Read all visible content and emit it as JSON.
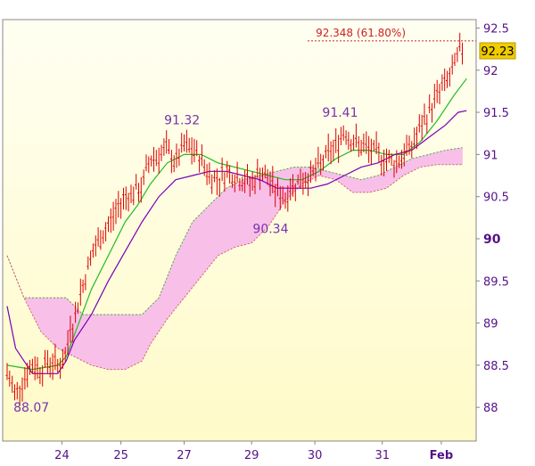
{
  "chart_data": {
    "type": "candlestick",
    "ylim": [
      87.6,
      92.6
    ],
    "y_ticks": [
      88,
      88.5,
      89,
      89.5,
      90,
      90.5,
      91,
      91.5,
      92,
      92.5
    ],
    "y_tick_labels": [
      "88",
      "88.5",
      "89",
      "89.5",
      "90",
      "90.5",
      "91",
      "91.5",
      "92",
      "92.5"
    ],
    "y_tick_emphasis": "90",
    "x_tick_labels": [
      {
        "label": "24",
        "x": 13
      },
      {
        "label": "25",
        "x": 27
      },
      {
        "label": "27",
        "x": 42
      },
      {
        "label": "29",
        "x": 58
      },
      {
        "label": "30",
        "x": 73
      },
      {
        "label": "31",
        "x": 89
      },
      {
        "label": "Feb",
        "x": 103
      }
    ],
    "x_range": [
      0,
      110
    ],
    "last_price": "92.23",
    "last_price_value": 92.23,
    "fib_level": {
      "value": 92.348,
      "label": "92.348 (61.80%)"
    },
    "annotations": [
      {
        "text": "88.07",
        "x": 1.5,
        "y": 87.95
      },
      {
        "text": "91.32",
        "x": 41.5,
        "y": 91.36
      },
      {
        "text": "90.34",
        "x": 62.5,
        "y": 90.07
      },
      {
        "text": "91.41",
        "x": 79,
        "y": 91.45
      }
    ],
    "candles": {
      "points": [
        [
          0,
          88.4
        ],
        [
          2,
          88.15
        ],
        [
          4,
          88.35
        ],
        [
          6,
          88.5
        ],
        [
          8,
          88.45
        ],
        [
          10,
          88.55
        ],
        [
          12,
          88.5
        ],
        [
          14,
          88.6
        ],
        [
          15,
          89.0
        ],
        [
          16,
          89.0
        ],
        [
          17,
          89.3
        ],
        [
          18,
          89.45
        ],
        [
          20,
          89.8
        ],
        [
          22,
          90.0
        ],
        [
          24,
          90.15
        ],
        [
          26,
          90.35
        ],
        [
          28,
          90.5
        ],
        [
          30,
          90.55
        ],
        [
          32,
          90.6
        ],
        [
          33,
          90.8
        ],
        [
          34,
          90.95
        ],
        [
          36,
          91.0
        ],
        [
          38,
          91.05
        ],
        [
          40,
          90.9
        ],
        [
          42,
          91.1
        ],
        [
          44,
          91.05
        ],
        [
          46,
          90.95
        ],
        [
          48,
          90.75
        ],
        [
          50,
          90.7
        ],
        [
          52,
          90.8
        ],
        [
          54,
          90.75
        ],
        [
          56,
          90.7
        ],
        [
          58,
          90.65
        ],
        [
          60,
          90.8
        ],
        [
          62,
          90.7
        ],
        [
          64,
          90.55
        ],
        [
          66,
          90.5
        ],
        [
          68,
          90.65
        ],
        [
          70,
          90.7
        ],
        [
          72,
          90.75
        ],
        [
          74,
          90.85
        ],
        [
          76,
          91.0
        ],
        [
          78,
          91.1
        ],
        [
          80,
          91.3
        ],
        [
          82,
          91.15
        ],
        [
          84,
          91.1
        ],
        [
          86,
          91.05
        ],
        [
          88,
          91.0
        ],
        [
          90,
          90.95
        ],
        [
          92,
          90.9
        ],
        [
          94,
          91.0
        ],
        [
          96,
          91.1
        ],
        [
          98,
          91.3
        ],
        [
          100,
          91.5
        ],
        [
          102,
          91.7
        ],
        [
          104,
          91.85
        ],
        [
          106,
          92.0
        ],
        [
          107,
          92.2
        ],
        [
          108,
          92.23
        ]
      ],
      "color": "#dd0000"
    },
    "series": [
      {
        "style": "line",
        "color": "#22bb22",
        "points": [
          [
            0,
            88.5
          ],
          [
            6,
            88.45
          ],
          [
            12,
            88.5
          ],
          [
            14,
            88.6
          ],
          [
            17,
            89.0
          ],
          [
            20,
            89.4
          ],
          [
            24,
            89.8
          ],
          [
            28,
            90.2
          ],
          [
            31,
            90.4
          ],
          [
            34,
            90.65
          ],
          [
            38,
            90.9
          ],
          [
            42,
            91.0
          ],
          [
            46,
            91.0
          ],
          [
            50,
            90.9
          ],
          [
            54,
            90.85
          ],
          [
            58,
            90.8
          ],
          [
            62,
            90.75
          ],
          [
            66,
            90.7
          ],
          [
            70,
            90.7
          ],
          [
            74,
            90.8
          ],
          [
            78,
            90.95
          ],
          [
            82,
            91.05
          ],
          [
            86,
            91.05
          ],
          [
            90,
            91.0
          ],
          [
            94,
            91.0
          ],
          [
            98,
            91.15
          ],
          [
            102,
            91.4
          ],
          [
            106,
            91.7
          ],
          [
            109,
            91.9
          ]
        ]
      },
      {
        "style": "line",
        "color": "#7700bb",
        "points": [
          [
            0,
            89.2
          ],
          [
            2,
            88.7
          ],
          [
            6,
            88.4
          ],
          [
            12,
            88.4
          ],
          [
            14,
            88.55
          ],
          [
            16,
            88.8
          ],
          [
            20,
            89.1
          ],
          [
            24,
            89.5
          ],
          [
            28,
            89.85
          ],
          [
            32,
            90.2
          ],
          [
            36,
            90.5
          ],
          [
            40,
            90.7
          ],
          [
            44,
            90.75
          ],
          [
            48,
            90.8
          ],
          [
            52,
            90.8
          ],
          [
            56,
            90.75
          ],
          [
            60,
            90.7
          ],
          [
            64,
            90.6
          ],
          [
            68,
            90.6
          ],
          [
            72,
            90.6
          ],
          [
            76,
            90.65
          ],
          [
            80,
            90.75
          ],
          [
            84,
            90.85
          ],
          [
            88,
            90.9
          ],
          [
            92,
            91.0
          ],
          [
            96,
            91.05
          ],
          [
            100,
            91.2
          ],
          [
            104,
            91.35
          ],
          [
            107,
            91.5
          ],
          [
            109,
            91.52
          ]
        ]
      }
    ],
    "cloud": {
      "span_a": [
        [
          0,
          89.8
        ],
        [
          4,
          89.3
        ],
        [
          14,
          89.3
        ],
        [
          18,
          89.1
        ],
        [
          26,
          89.1
        ],
        [
          32,
          89.1
        ],
        [
          36,
          89.3
        ],
        [
          40,
          89.8
        ],
        [
          44,
          90.2
        ],
        [
          48,
          90.4
        ],
        [
          52,
          90.6
        ],
        [
          56,
          90.7
        ],
        [
          60,
          90.75
        ],
        [
          64,
          90.8
        ],
        [
          68,
          90.85
        ],
        [
          72,
          90.85
        ],
        [
          76,
          90.8
        ],
        [
          80,
          90.75
        ],
        [
          84,
          90.7
        ],
        [
          88,
          90.75
        ],
        [
          92,
          90.85
        ],
        [
          96,
          90.95
        ],
        [
          100,
          91.0
        ],
        [
          104,
          91.05
        ],
        [
          108,
          91.08
        ]
      ],
      "span_b": [
        [
          0,
          89.8
        ],
        [
          4,
          89.3
        ],
        [
          8,
          88.9
        ],
        [
          12,
          88.7
        ],
        [
          16,
          88.6
        ],
        [
          20,
          88.5
        ],
        [
          24,
          88.45
        ],
        [
          28,
          88.45
        ],
        [
          32,
          88.55
        ],
        [
          34,
          88.75
        ],
        [
          38,
          89.05
        ],
        [
          42,
          89.3
        ],
        [
          46,
          89.55
        ],
        [
          50,
          89.8
        ],
        [
          54,
          89.9
        ],
        [
          58,
          89.95
        ],
        [
          62,
          90.15
        ],
        [
          66,
          90.45
        ],
        [
          70,
          90.65
        ],
        [
          74,
          90.75
        ],
        [
          78,
          90.7
        ],
        [
          82,
          90.55
        ],
        [
          86,
          90.55
        ],
        [
          90,
          90.6
        ],
        [
          94,
          90.75
        ],
        [
          98,
          90.85
        ],
        [
          102,
          90.88
        ],
        [
          108,
          90.88
        ]
      ],
      "bull_color": "#a8f0a0",
      "bear_color": "#f8c0e8",
      "span_a_color": "#44aa44",
      "span_b_color": "#cc6666",
      "span_b_edge_color": "#44bbcc"
    }
  }
}
